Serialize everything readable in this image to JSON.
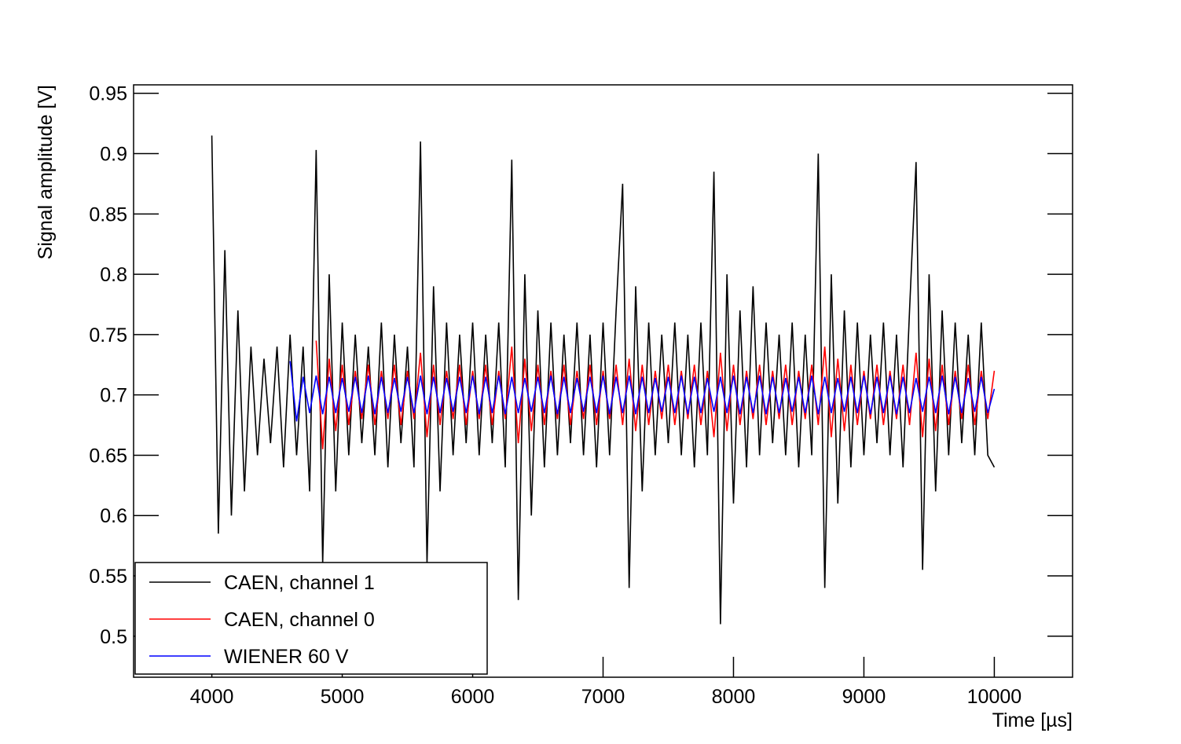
{
  "chart_data": {
    "type": "line",
    "x_label": "Time [µs]",
    "y_label": "Signal amplitude [V]",
    "x": [
      4000,
      4050,
      4100,
      4150,
      4200,
      4250,
      4300,
      4350,
      4400,
      4450,
      4500,
      4550,
      4600,
      4650,
      4700,
      4750,
      4800,
      4850,
      4900,
      4950,
      5000,
      5050,
      5100,
      5150,
      5200,
      5250,
      5300,
      5350,
      5400,
      5450,
      5500,
      5550,
      5600,
      5650,
      5700,
      5750,
      5800,
      5850,
      5900,
      5950,
      6000,
      6050,
      6100,
      6150,
      6200,
      6250,
      6300,
      6350,
      6400,
      6450,
      6500,
      6550,
      6600,
      6650,
      6700,
      6750,
      6800,
      6850,
      6900,
      6950,
      7000,
      7050,
      7100,
      7150,
      7200,
      7250,
      7300,
      7350,
      7400,
      7450,
      7500,
      7550,
      7600,
      7650,
      7700,
      7750,
      7800,
      7850,
      7900,
      7950,
      8000,
      8050,
      8100,
      8150,
      8200,
      8250,
      8300,
      8350,
      8400,
      8450,
      8500,
      8550,
      8600,
      8650,
      8700,
      8750,
      8800,
      8850,
      8900,
      8950,
      9000,
      9050,
      9100,
      9150,
      9200,
      9250,
      9300,
      9350,
      9400,
      9450,
      9500,
      9550,
      9600,
      9650,
      9700,
      9750,
      9800,
      9850,
      9900,
      9950,
      10000
    ],
    "series": [
      {
        "name": "CAEN, channel 1",
        "color": "#000000",
        "values": [
          0.915,
          0.585,
          0.82,
          0.6,
          0.77,
          0.62,
          0.74,
          0.65,
          0.73,
          0.66,
          0.74,
          0.64,
          0.75,
          0.65,
          0.74,
          0.62,
          0.903,
          0.56,
          0.8,
          0.62,
          0.76,
          0.65,
          0.75,
          0.66,
          0.74,
          0.65,
          0.76,
          0.64,
          0.75,
          0.66,
          0.74,
          0.64,
          0.91,
          0.56,
          0.79,
          0.62,
          0.76,
          0.65,
          0.75,
          0.66,
          0.76,
          0.65,
          0.75,
          0.66,
          0.76,
          0.64,
          0.895,
          0.53,
          0.8,
          0.6,
          0.77,
          0.64,
          0.76,
          0.65,
          0.75,
          0.66,
          0.76,
          0.65,
          0.75,
          0.64,
          0.76,
          0.65,
          0.77,
          0.875,
          0.54,
          0.79,
          0.62,
          0.76,
          0.65,
          0.75,
          0.66,
          0.76,
          0.65,
          0.75,
          0.64,
          0.76,
          0.65,
          0.885,
          0.51,
          0.8,
          0.61,
          0.77,
          0.64,
          0.79,
          0.65,
          0.76,
          0.66,
          0.75,
          0.65,
          0.76,
          0.64,
          0.75,
          0.65,
          0.9,
          0.54,
          0.8,
          0.61,
          0.77,
          0.64,
          0.76,
          0.65,
          0.75,
          0.66,
          0.76,
          0.65,
          0.75,
          0.64,
          0.77,
          0.893,
          0.555,
          0.8,
          0.62,
          0.77,
          0.65,
          0.76,
          0.66,
          0.75,
          0.65,
          0.76,
          0.65,
          0.64
        ]
      },
      {
        "name": "CAEN, channel 0",
        "color": "#ff0000",
        "values": [
          null,
          null,
          null,
          null,
          null,
          null,
          null,
          null,
          null,
          null,
          null,
          null,
          null,
          null,
          null,
          null,
          0.745,
          0.655,
          0.73,
          0.67,
          0.725,
          0.675,
          0.72,
          0.68,
          0.725,
          0.675,
          0.72,
          0.68,
          0.725,
          0.675,
          0.72,
          0.68,
          0.735,
          0.665,
          0.725,
          0.675,
          0.72,
          0.68,
          0.725,
          0.675,
          0.72,
          0.68,
          0.725,
          0.675,
          0.72,
          0.68,
          0.74,
          0.66,
          0.73,
          0.67,
          0.725,
          0.675,
          0.72,
          0.68,
          0.725,
          0.675,
          0.72,
          0.68,
          0.725,
          0.675,
          0.72,
          0.68,
          0.725,
          0.675,
          0.73,
          0.67,
          0.725,
          0.675,
          0.72,
          0.68,
          0.725,
          0.675,
          0.72,
          0.68,
          0.725,
          0.675,
          0.72,
          0.665,
          0.735,
          0.67,
          0.725,
          0.675,
          0.72,
          0.68,
          0.725,
          0.675,
          0.72,
          0.68,
          0.725,
          0.675,
          0.72,
          0.68,
          0.725,
          0.675,
          0.74,
          0.665,
          0.73,
          0.67,
          0.725,
          0.675,
          0.72,
          0.68,
          0.725,
          0.675,
          0.72,
          0.68,
          0.725,
          0.675,
          0.735,
          0.665,
          0.73,
          0.67,
          0.725,
          0.675,
          0.72,
          0.68,
          0.725,
          0.675,
          0.72,
          0.68,
          0.72
        ]
      },
      {
        "name": "WIENER 60 V",
        "color": "#0000ff",
        "values": [
          null,
          null,
          null,
          null,
          null,
          null,
          null,
          null,
          null,
          null,
          null,
          null,
          0.728,
          0.678,
          0.715,
          0.685,
          0.716,
          0.684,
          0.715,
          0.685,
          0.714,
          0.686,
          0.715,
          0.685,
          0.716,
          0.684,
          0.715,
          0.685,
          0.714,
          0.686,
          0.715,
          0.685,
          0.716,
          0.684,
          0.715,
          0.685,
          0.714,
          0.686,
          0.715,
          0.685,
          0.716,
          0.684,
          0.715,
          0.685,
          0.716,
          0.684,
          0.715,
          0.685,
          0.714,
          0.686,
          0.715,
          0.685,
          0.716,
          0.684,
          0.715,
          0.685,
          0.714,
          0.686,
          0.715,
          0.685,
          0.716,
          0.684,
          0.715,
          0.685,
          0.716,
          0.684,
          0.715,
          0.685,
          0.714,
          0.686,
          0.715,
          0.685,
          0.716,
          0.684,
          0.715,
          0.685,
          0.714,
          0.686,
          0.715,
          0.685,
          0.716,
          0.684,
          0.715,
          0.685,
          0.716,
          0.684,
          0.715,
          0.685,
          0.714,
          0.686,
          0.715,
          0.685,
          0.716,
          0.684,
          0.715,
          0.685,
          0.714,
          0.686,
          0.715,
          0.685,
          0.716,
          0.684,
          0.715,
          0.685,
          0.716,
          0.684,
          0.715,
          0.685,
          0.714,
          0.686,
          0.715,
          0.685,
          0.716,
          0.684,
          0.715,
          0.685,
          0.714,
          0.686,
          0.715,
          0.685,
          0.705
        ]
      }
    ],
    "xlim": [
      3400,
      10600
    ],
    "ylim": [
      0.466,
      0.957
    ],
    "xticks": [
      4000,
      5000,
      6000,
      7000,
      8000,
      9000,
      10000
    ],
    "yticks": [
      0.5,
      0.55,
      0.6,
      0.65,
      0.7,
      0.75,
      0.8,
      0.85,
      0.9,
      0.95
    ],
    "legend": "bottom left"
  }
}
